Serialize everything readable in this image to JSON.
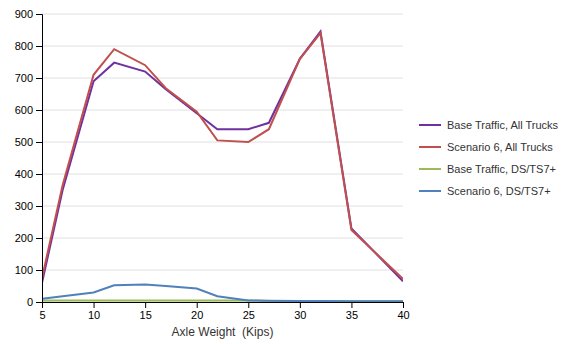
{
  "chart_data": {
    "type": "line",
    "x_label": "Axle Weight  (Kips)",
    "x": [
      5,
      7,
      10,
      12,
      15,
      17,
      20,
      22,
      25,
      27,
      30,
      32,
      35,
      40
    ],
    "series": [
      {
        "name": "Base Traffic, All Trucks",
        "color": "#7030A0",
        "values": [
          60,
          350,
          690,
          748,
          720,
          665,
          590,
          540,
          540,
          560,
          760,
          845,
          230,
          65
        ]
      },
      {
        "name": "Scenario 6, All Trucks",
        "color": "#C0504D",
        "values": [
          75,
          365,
          710,
          790,
          740,
          668,
          595,
          505,
          500,
          540,
          760,
          840,
          225,
          72
        ]
      },
      {
        "name": "Base Traffic, DS/TS7+",
        "color": "#9BBB59",
        "values": [
          5,
          5,
          5,
          5,
          5,
          5,
          5,
          5,
          5,
          3,
          3,
          2,
          2,
          2
        ]
      },
      {
        "name": "Scenario 6, DS/TS7+",
        "color": "#4F81BD",
        "values": [
          10,
          18,
          30,
          52,
          55,
          50,
          42,
          18,
          5,
          4,
          3,
          3,
          2,
          2
        ]
      }
    ],
    "xlim": [
      5,
      40
    ],
    "ylim": [
      0,
      900
    ],
    "xticks": [
      5,
      10,
      15,
      20,
      25,
      30,
      35,
      40
    ],
    "yticks": [
      0,
      100,
      200,
      300,
      400,
      500,
      600,
      700,
      800,
      900
    ],
    "grid": true,
    "legend": "right"
  }
}
